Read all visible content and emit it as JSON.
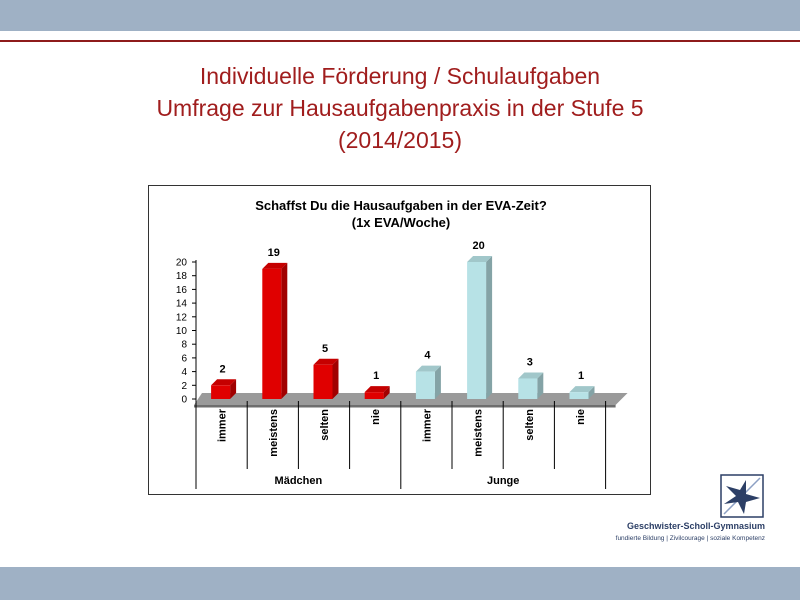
{
  "slide": {
    "title_line1": "Individuelle Förderung / Schulaufgaben",
    "title_line2": "Umfrage zur Hausaufgabenpraxis in der Stufe 5",
    "title_line3": "(2014/2015)"
  },
  "chart_data": {
    "type": "bar",
    "title": "Schaffst Du die Hausaufgaben in der EVA-Zeit?",
    "subtitle": "(1x EVA/Woche)",
    "ylim": [
      0,
      20
    ],
    "yticks": [
      "0",
      "2",
      "4",
      "6",
      "8",
      "10",
      "12",
      "14",
      "16",
      "18",
      "20"
    ],
    "groups": [
      {
        "name": "Mädchen",
        "color": "#e00000",
        "categories": [
          "immer",
          "meistens",
          "selten",
          "nie"
        ],
        "values": [
          2,
          19,
          5,
          1
        ]
      },
      {
        "name": "Junge",
        "color": "#b7e2e6",
        "categories": [
          "immer",
          "meistens",
          "selten",
          "nie"
        ],
        "values": [
          4,
          20,
          3,
          1
        ]
      }
    ],
    "grid": false,
    "legend": "none"
  },
  "footer": {
    "school_name": "Geschwister-Scholl-Gymnasium",
    "tagline": "fundierte Bildung | Zivilcourage | soziale Kompetenz"
  }
}
